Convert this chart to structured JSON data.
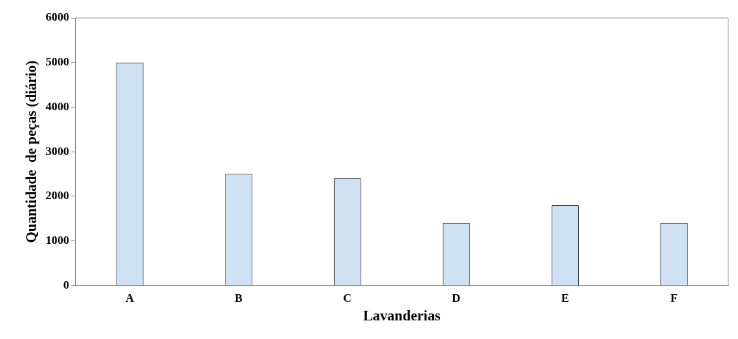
{
  "chart_data": {
    "type": "bar",
    "xlabel": "Lavanderias",
    "ylabel": "Quantidade  de peças (diário)",
    "categories": [
      "A",
      "B",
      "C",
      "D",
      "E",
      "F"
    ],
    "values": [
      5000,
      2500,
      2400,
      1400,
      1800,
      1400
    ],
    "color": "#cfe2f3",
    "ylim": [
      0,
      6000
    ],
    "yticks": [
      0,
      1000,
      2000,
      3000,
      4000,
      5000,
      6000
    ],
    "grid": false,
    "legend": false
  }
}
